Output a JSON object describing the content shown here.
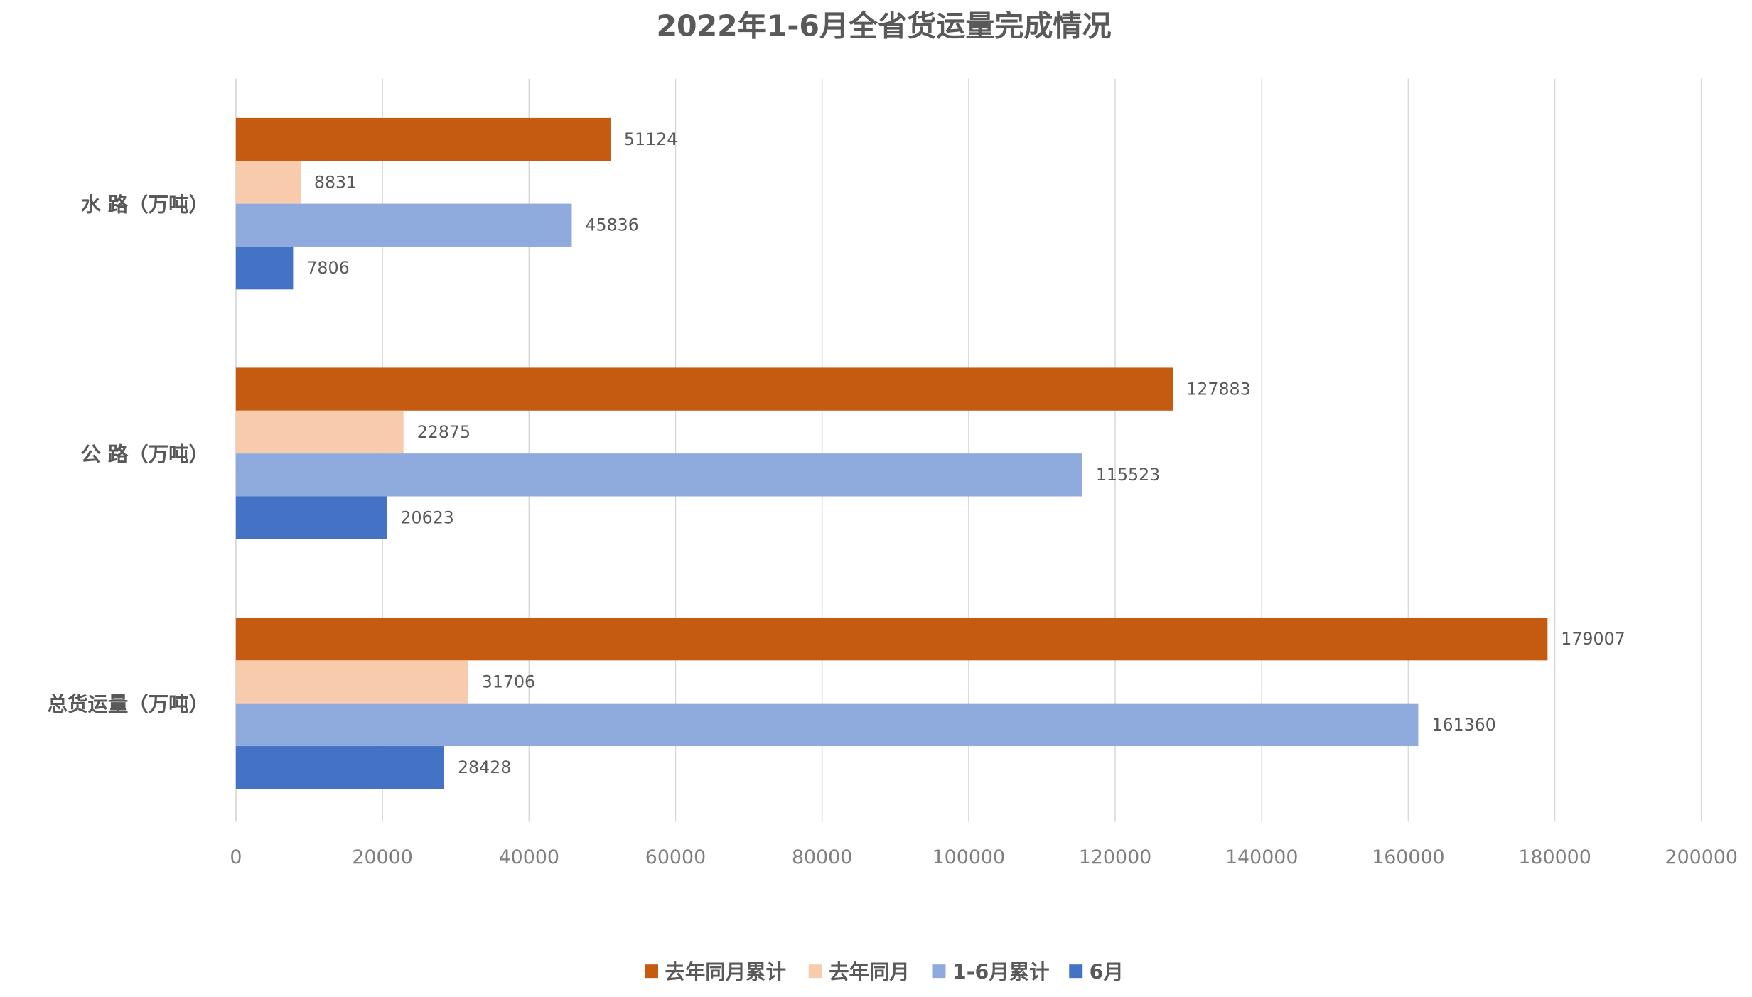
{
  "chart_data": {
    "type": "bar",
    "orientation": "horizontal",
    "title": "2022年1-6月全省货运量完成情况",
    "categories": [
      "水 路（万吨）",
      "公 路（万吨）",
      "总货运量（万吨）"
    ],
    "series": [
      {
        "name": "去年同月累计",
        "color": "#C55A11",
        "values": [
          51124,
          127883,
          179007
        ]
      },
      {
        "name": "去年同月",
        "color": "#F8CBAD",
        "values": [
          8831,
          22875,
          31706
        ]
      },
      {
        "name": "1-6月累计",
        "color": "#8FAADC",
        "values": [
          45836,
          115523,
          161360
        ]
      },
      {
        "name": "6月",
        "color": "#4472C4",
        "values": [
          7806,
          20623,
          28428
        ]
      }
    ],
    "xlim": [
      0,
      200000
    ],
    "xticks": [
      "0",
      "20000",
      "40000",
      "60000",
      "80000",
      "100000",
      "120000",
      "140000",
      "160000",
      "180000",
      "200000"
    ],
    "grid": true,
    "legend": "bottom",
    "data_labels": true
  }
}
